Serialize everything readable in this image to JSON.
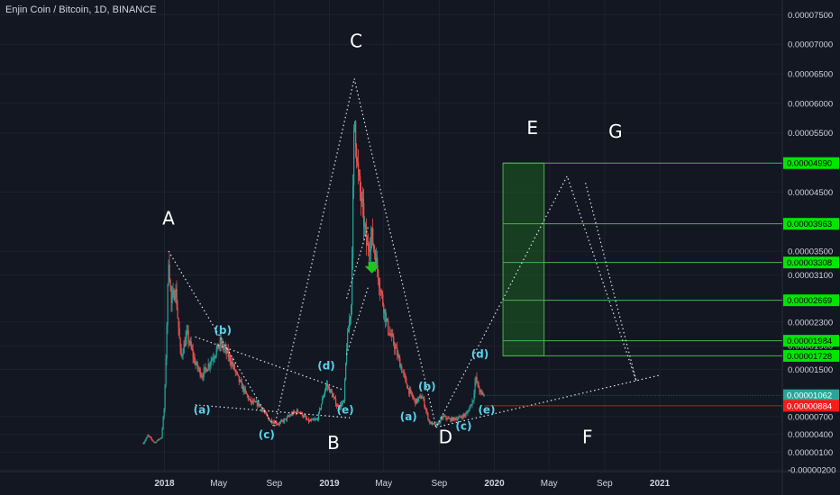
{
  "header": {
    "symbol": "Enjin Coin / Bitcoin, 1D, BINANCE"
  },
  "colors": {
    "bg": "#131722",
    "up": "#26a69a",
    "down": "#ef5350",
    "grid": "#1e222d",
    "axis_text": "#d1d4dc",
    "wave": "#5ad1e8",
    "box_fill": "#1b5e20",
    "box_line": "#4caf50",
    "badge_green": "#00e600",
    "badge_red": "#ff1a1a",
    "badge_teal": "#26a69a"
  },
  "chart_data": {
    "type": "candlestick",
    "title": "Enjin Coin / Bitcoin, 1D, BINANCE",
    "x_ticks": [
      "2018",
      "May",
      "Sep",
      "2019",
      "May",
      "Sep",
      "2020",
      "May",
      "Sep",
      "2021"
    ],
    "x_tick_dates": [
      "2018-01-01",
      "2018-05-01",
      "2018-09-01",
      "2019-01-01",
      "2019-05-01",
      "2019-09-01",
      "2020-01-01",
      "2020-05-01",
      "2020-09-01",
      "2021-01-01"
    ],
    "y_ticks": [
      "0.00007500",
      "0.00007000",
      "0.00006500",
      "0.00006000",
      "0.00005500",
      "0.00004500",
      "0.00003500",
      "0.00003100",
      "0.00002300",
      "0.00001900",
      "0.00001500",
      "0.00000700",
      "0.00000400",
      "0.00000100",
      "-0.00000200"
    ],
    "y_tick_values": [
      7.5e-05,
      7e-05,
      6.5e-05,
      6e-05,
      5.5e-05,
      4.5e-05,
      3.5e-05,
      3.1e-05,
      2.3e-05,
      1.9e-05,
      1.5e-05,
      7e-06,
      4e-06,
      1e-06,
      -2e-06
    ],
    "ylim": [
      -2.3e-06,
      7.75e-05
    ],
    "price_path": [
      [
        "2017-11-15",
        2.5e-06
      ],
      [
        "2017-11-25",
        3.8e-06
      ],
      [
        "2017-12-10",
        2.6e-06
      ],
      [
        "2017-12-25",
        3.5e-06
      ],
      [
        "2018-01-01",
        9e-06
      ],
      [
        "2018-01-05",
        2e-05
      ],
      [
        "2018-01-10",
        3.4e-05
      ],
      [
        "2018-01-16",
        2.6e-05
      ],
      [
        "2018-01-25",
        2.9e-05
      ],
      [
        "2018-02-06",
        1.7e-05
      ],
      [
        "2018-02-20",
        2.1e-05
      ],
      [
        "2018-03-10",
        1.6e-05
      ],
      [
        "2018-03-25",
        1.4e-05
      ],
      [
        "2018-04-10",
        1.6e-05
      ],
      [
        "2018-05-05",
        1.95e-05
      ],
      [
        "2018-05-25",
        1.7e-05
      ],
      [
        "2018-06-15",
        1.3e-05
      ],
      [
        "2018-07-10",
        9.5e-06
      ],
      [
        "2018-07-30",
        9e-06
      ],
      [
        "2018-08-20",
        6.5e-06
      ],
      [
        "2018-09-10",
        5.8e-06
      ],
      [
        "2018-09-25",
        6.5e-06
      ],
      [
        "2018-10-10",
        7.5e-06
      ],
      [
        "2018-10-25",
        8e-06
      ],
      [
        "2018-11-15",
        6.2e-06
      ],
      [
        "2018-12-05",
        6.5e-06
      ],
      [
        "2018-12-25",
        1.25e-05
      ],
      [
        "2019-01-05",
        1.1e-05
      ],
      [
        "2019-01-20",
        8.5e-06
      ],
      [
        "2019-02-02",
        9.5e-06
      ],
      [
        "2019-02-08",
        1.9e-05
      ],
      [
        "2019-02-18",
        2.6e-05
      ],
      [
        "2019-02-25",
        5.85e-05
      ],
      [
        "2019-03-05",
        4.8e-05
      ],
      [
        "2019-03-15",
        4.2e-05
      ],
      [
        "2019-03-25",
        3.55e-05
      ],
      [
        "2019-04-05",
        3.75e-05
      ],
      [
        "2019-04-15",
        3.3e-05
      ],
      [
        "2019-04-25",
        2.8e-05
      ],
      [
        "2019-05-10",
        2.2e-05
      ],
      [
        "2019-05-25",
        1.9e-05
      ],
      [
        "2019-06-10",
        1.5e-05
      ],
      [
        "2019-06-25",
        1.15e-05
      ],
      [
        "2019-07-10",
        9.5e-06
      ],
      [
        "2019-07-25",
        1.05e-05
      ],
      [
        "2019-08-10",
        6e-06
      ],
      [
        "2019-08-25",
        5.5e-06
      ],
      [
        "2019-09-10",
        7e-06
      ],
      [
        "2019-09-25",
        6.5e-06
      ],
      [
        "2019-10-15",
        6.8e-06
      ],
      [
        "2019-11-01",
        7.5e-06
      ],
      [
        "2019-11-15",
        1e-05
      ],
      [
        "2019-11-20",
        1.35e-05
      ],
      [
        "2019-12-01",
        1.1e-05
      ],
      [
        "2019-12-10",
        1.06e-05
      ]
    ],
    "price_badges": [
      {
        "label": "0.00004990",
        "value": 4.99e-05,
        "color": "green"
      },
      {
        "label": "0.00003963",
        "value": 3.963e-05,
        "color": "green"
      },
      {
        "label": "0.00003308",
        "value": 3.308e-05,
        "color": "green"
      },
      {
        "label": "0.00002669",
        "value": 2.669e-05,
        "color": "green"
      },
      {
        "label": "0.00001984",
        "value": 1.984e-05,
        "color": "green"
      },
      {
        "label": "0.00001728",
        "value": 1.728e-05,
        "color": "green"
      },
      {
        "label": "0.00001062",
        "value": 1.062e-05,
        "color": "teal"
      },
      {
        "label": "0.00000884",
        "value": 8.84e-06,
        "color": "red"
      }
    ],
    "target_box": {
      "from": "2020-01-20",
      "to": "2020-04-20",
      "top": 4.99e-05,
      "bottom": 1.728e-05,
      "levels": [
        4.99e-05,
        3.963e-05,
        3.308e-05,
        2.669e-05,
        1.984e-05,
        1.728e-05
      ]
    },
    "wave_points": [
      {
        "label": "A",
        "date": "2018-01-10",
        "value": 3.5e-05
      },
      {
        "label": "B",
        "date": "2018-09-01",
        "value": 5.2e-06
      },
      {
        "label": "C",
        "date": "2019-02-25",
        "value": 6.42e-05
      },
      {
        "label": "D",
        "date": "2019-08-25",
        "value": 5.2e-06
      },
      {
        "label": "E",
        "date": "2020-06-10",
        "value": 4.77e-05
      },
      {
        "label": "F",
        "date": "2020-11-10",
        "value": 1.3e-05
      }
    ],
    "wave_labels": [
      {
        "text": "A",
        "date": "2018-01-10",
        "value": 3.95e-05,
        "size": "big"
      },
      {
        "text": "B",
        "date": "2019-01-10",
        "value": 1.5e-06,
        "size": "big"
      },
      {
        "text": "C",
        "date": "2019-03-01",
        "value": 6.95e-05,
        "size": "big"
      },
      {
        "text": "D",
        "date": "2019-09-15",
        "value": 2.5e-06,
        "size": "big"
      },
      {
        "text": "E",
        "date": "2020-03-25",
        "value": 5.48e-05,
        "size": "big"
      },
      {
        "text": "F",
        "date": "2020-07-25",
        "value": 2.5e-06,
        "size": "big"
      },
      {
        "text": "G",
        "date": "2020-09-25",
        "value": 5.42e-05,
        "size": "big"
      },
      {
        "text": "(a)",
        "date": "2018-03-25",
        "value": 7.5e-06,
        "size": "small"
      },
      {
        "text": "(b)",
        "date": "2018-05-10",
        "value": 2.1e-05,
        "size": "small"
      },
      {
        "text": "(c)",
        "date": "2018-08-15",
        "value": 3.3e-06,
        "size": "small"
      },
      {
        "text": "(d)",
        "date": "2018-12-25",
        "value": 1.5e-05,
        "size": "small"
      },
      {
        "text": "(e)",
        "date": "2019-02-05",
        "value": 7.5e-06,
        "size": "small"
      },
      {
        "text": "(a)",
        "date": "2019-06-25",
        "value": 6.4e-06,
        "size": "small"
      },
      {
        "text": "(b)",
        "date": "2019-08-05",
        "value": 1.15e-05,
        "size": "small"
      },
      {
        "text": "(c)",
        "date": "2019-10-25",
        "value": 4.8e-06,
        "size": "small"
      },
      {
        "text": "(d)",
        "date": "2019-11-30",
        "value": 1.7e-05,
        "size": "small"
      },
      {
        "text": "(e)",
        "date": "2019-12-15",
        "value": 7.5e-06,
        "size": "small"
      }
    ],
    "triangle_1": {
      "upper": [
        [
          "2018-03-10",
          2.05e-05
        ],
        [
          "2019-02-01",
          1.15e-05
        ]
      ],
      "lower": [
        [
          "2018-03-10",
          9e-06
        ],
        [
          "2019-02-15",
          6.8e-06
        ]
      ]
    },
    "triangle_2_lower": [
      [
        "2019-08-25",
        5.2e-06
      ],
      [
        "2020-12-31",
        1.4e-05
      ]
    ],
    "channel_lines": [
      [
        [
          "2019-02-08",
          2.7e-05
        ],
        [
          "2019-03-28",
          3.92e-05
        ]
      ],
      [
        [
          "2019-02-08",
          1.75e-05
        ],
        [
          "2019-03-28",
          2.9e-05
        ]
      ]
    ]
  }
}
